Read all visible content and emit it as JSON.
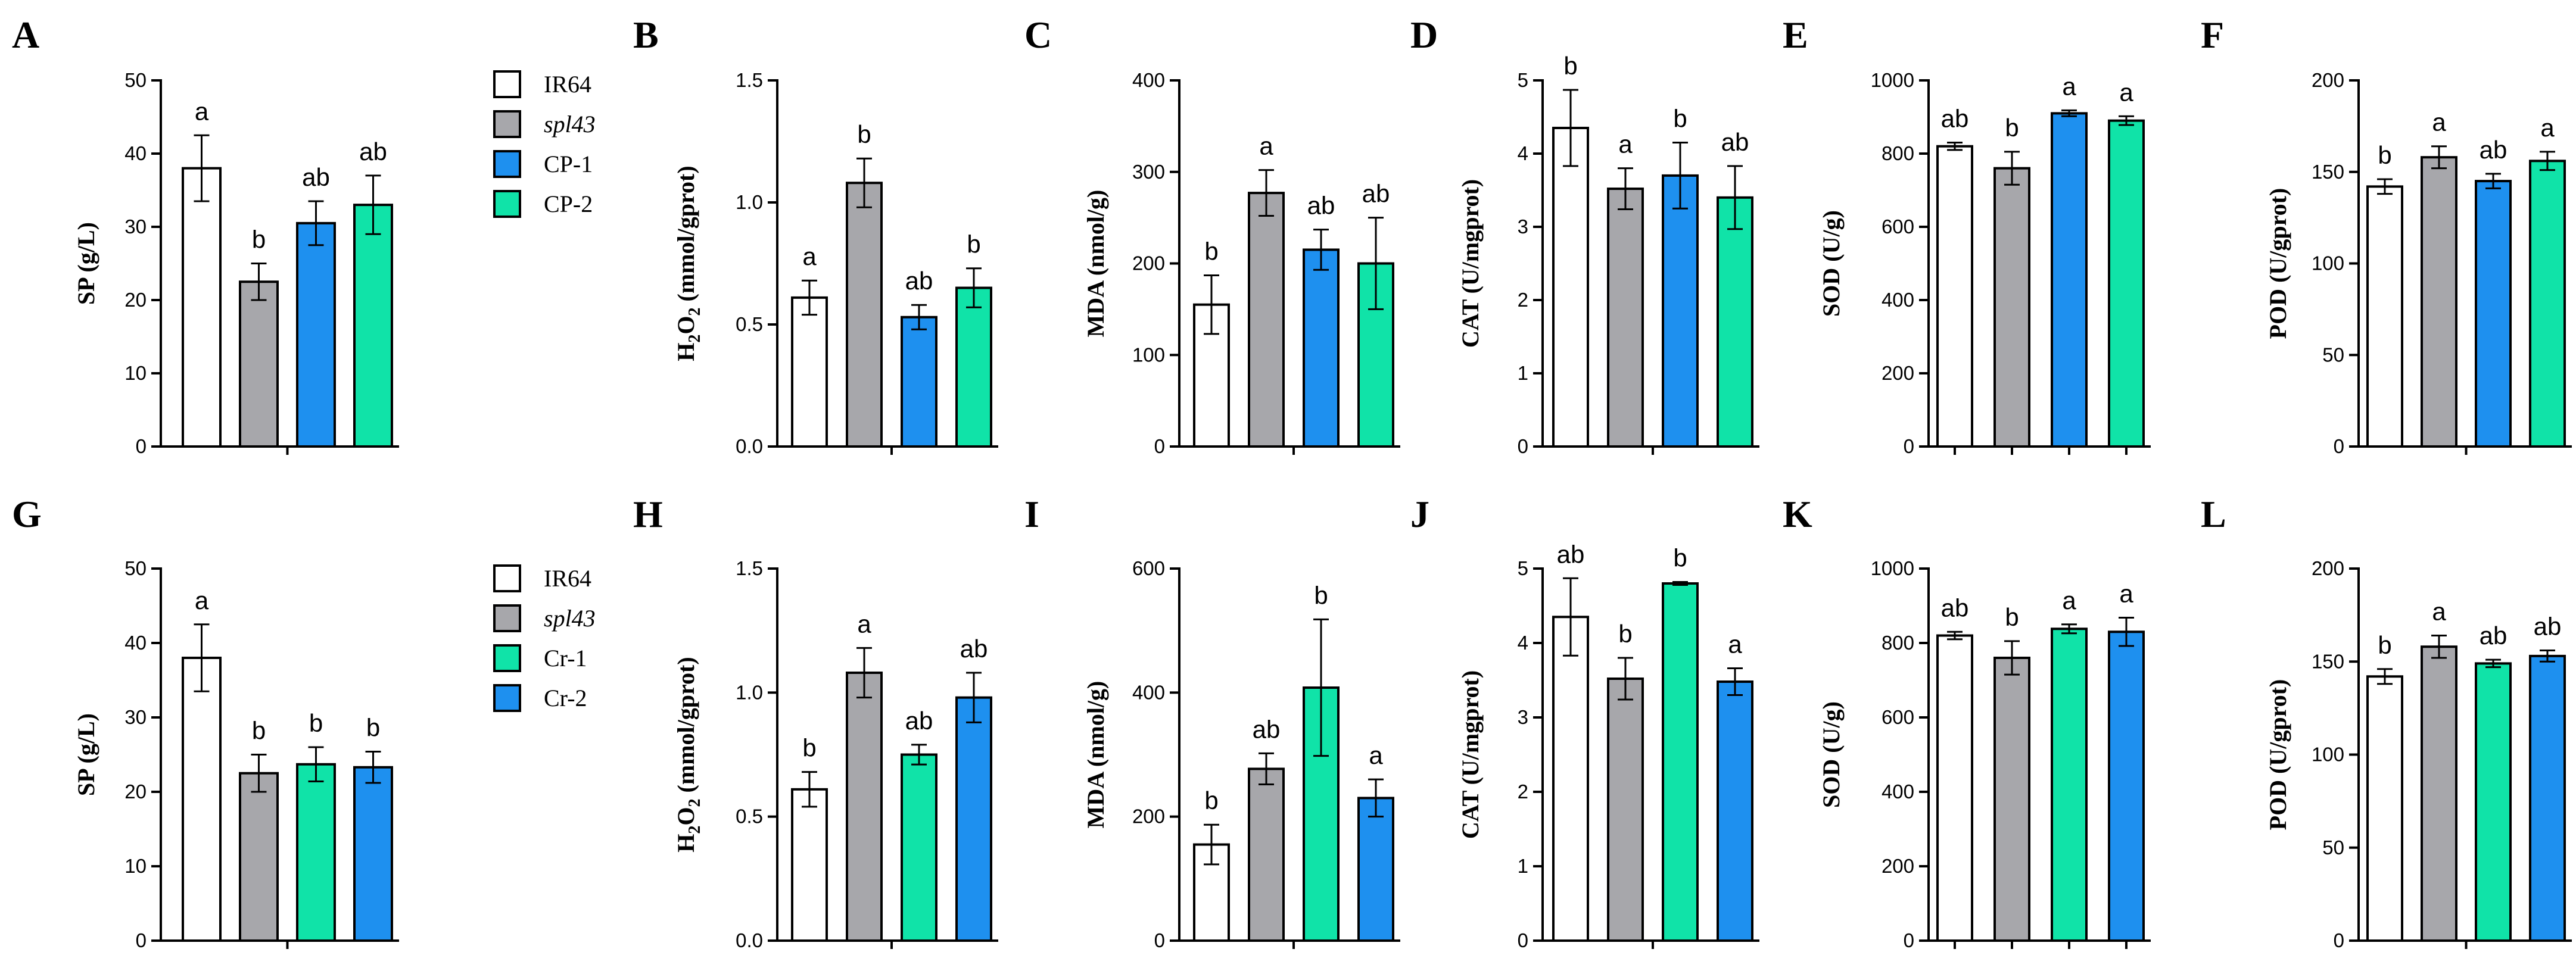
{
  "colors": {
    "IR64": "#ffffff",
    "spl43": "#a7a7ab",
    "blue": "#1e90ef",
    "green": "#10e3a8"
  },
  "legends": [
    {
      "row": 0,
      "items": [
        {
          "label": "IR64",
          "color": "#ffffff",
          "italic": false
        },
        {
          "label": "spl43",
          "color": "#a7a7ab",
          "italic": true
        },
        {
          "label": "CP-1",
          "color": "#1e90ef",
          "italic": false
        },
        {
          "label": "CP-2",
          "color": "#10e3a8",
          "italic": false
        }
      ]
    },
    {
      "row": 1,
      "items": [
        {
          "label": "IR64",
          "color": "#ffffff",
          "italic": false
        },
        {
          "label": "spl43",
          "color": "#a7a7ab",
          "italic": true
        },
        {
          "label": "Cr-1",
          "color": "#10e3a8",
          "italic": false
        },
        {
          "label": "Cr-2",
          "color": "#1e90ef",
          "italic": false
        }
      ]
    }
  ],
  "chart_data": [
    {
      "panel": "A",
      "type": "bar",
      "row": 0,
      "col": 0,
      "ylabel": "SP (g/L)",
      "ylim": [
        0,
        50
      ],
      "yticks": [
        "0",
        "10",
        "20",
        "30",
        "40",
        "50"
      ],
      "yticks_values": [
        0,
        10,
        20,
        30,
        40,
        50
      ],
      "categories": [
        "IR64",
        "spl43",
        "CP-1",
        "CP-2"
      ],
      "values": [
        38,
        22.5,
        30.5,
        33
      ],
      "errors": [
        4.5,
        2.5,
        3,
        4
      ],
      "letters": [
        "a",
        "b",
        "ab",
        "ab"
      ],
      "colors": [
        "#ffffff",
        "#a7a7ab",
        "#1e90ef",
        "#10e3a8"
      ],
      "xtick_mode": "center"
    },
    {
      "panel": "B",
      "type": "bar",
      "row": 0,
      "col": 1,
      "ylabel": "H2O2 (mmol/gprot)",
      "ylim": [
        0,
        1.5
      ],
      "yticks": [
        "0.0",
        "0.5",
        "1.0",
        "1.5"
      ],
      "yticks_values": [
        0,
        0.5,
        1.0,
        1.5
      ],
      "categories": [
        "IR64",
        "spl43",
        "CP-1",
        "CP-2"
      ],
      "values": [
        0.61,
        1.08,
        0.53,
        0.65
      ],
      "errors": [
        0.07,
        0.1,
        0.05,
        0.08
      ],
      "letters": [
        "a",
        "b",
        "ab",
        "b"
      ],
      "colors": [
        "#ffffff",
        "#a7a7ab",
        "#1e90ef",
        "#10e3a8"
      ],
      "xtick_mode": "center"
    },
    {
      "panel": "C",
      "type": "bar",
      "row": 0,
      "col": 2,
      "ylabel": "MDA (nmol/g)",
      "ylim": [
        0,
        400
      ],
      "yticks": [
        "0",
        "100",
        "200",
        "300",
        "400"
      ],
      "yticks_values": [
        0,
        100,
        200,
        300,
        400
      ],
      "categories": [
        "IR64",
        "spl43",
        "CP-1",
        "CP-2"
      ],
      "values": [
        155,
        277,
        215,
        200
      ],
      "errors": [
        32,
        25,
        22,
        50
      ],
      "letters": [
        "b",
        "a",
        "ab",
        "ab"
      ],
      "colors": [
        "#ffffff",
        "#a7a7ab",
        "#1e90ef",
        "#10e3a8"
      ],
      "xtick_mode": "center"
    },
    {
      "panel": "D",
      "type": "bar",
      "row": 0,
      "col": 3,
      "ylabel": "CAT (U/mgprot)",
      "ylim": [
        0,
        5
      ],
      "yticks": [
        "0",
        "1",
        "2",
        "3",
        "4",
        "5"
      ],
      "yticks_values": [
        0,
        1,
        2,
        3,
        4,
        5
      ],
      "categories": [
        "IR64",
        "spl43",
        "CP-1",
        "CP-2"
      ],
      "values": [
        4.35,
        3.52,
        3.7,
        3.4
      ],
      "errors": [
        0.52,
        0.28,
        0.45,
        0.43
      ],
      "letters": [
        "b",
        "a",
        "b",
        "ab"
      ],
      "colors": [
        "#ffffff",
        "#a7a7ab",
        "#1e90ef",
        "#10e3a8"
      ],
      "xtick_mode": "center"
    },
    {
      "panel": "E",
      "type": "bar",
      "row": 0,
      "col": 4,
      "ylabel": "SOD (U/g)",
      "ylim": [
        0,
        1000
      ],
      "yticks": [
        "0",
        "200",
        "400",
        "600",
        "800",
        "1000"
      ],
      "yticks_values": [
        0,
        200,
        400,
        600,
        800,
        1000
      ],
      "categories": [
        "IR64",
        "spl43",
        "CP-1",
        "CP-2"
      ],
      "values": [
        820,
        760,
        910,
        890
      ],
      "errors": [
        10,
        45,
        8,
        12
      ],
      "letters": [
        "ab",
        "b",
        "a",
        "a"
      ],
      "colors": [
        "#ffffff",
        "#a7a7ab",
        "#1e90ef",
        "#10e3a8"
      ],
      "xtick_mode": "each"
    },
    {
      "panel": "F",
      "type": "bar",
      "row": 0,
      "col": 5,
      "ylabel": "POD (U/gprot)",
      "ylim": [
        0,
        200
      ],
      "yticks": [
        "0",
        "50",
        "100",
        "150",
        "200"
      ],
      "yticks_values": [
        0,
        50,
        100,
        150,
        200
      ],
      "categories": [
        "IR64",
        "spl43",
        "CP-1",
        "CP-2"
      ],
      "values": [
        142,
        158,
        145,
        156
      ],
      "errors": [
        4,
        6,
        4,
        5
      ],
      "letters": [
        "b",
        "a",
        "ab",
        "a"
      ],
      "colors": [
        "#ffffff",
        "#a7a7ab",
        "#1e90ef",
        "#10e3a8"
      ],
      "xtick_mode": "center"
    },
    {
      "panel": "G",
      "type": "bar",
      "row": 1,
      "col": 0,
      "ylabel": "SP (g/L)",
      "ylim": [
        0,
        50
      ],
      "yticks": [
        "0",
        "10",
        "20",
        "30",
        "40",
        "50"
      ],
      "yticks_values": [
        0,
        10,
        20,
        30,
        40,
        50
      ],
      "categories": [
        "IR64",
        "spl43",
        "Cr-1",
        "Cr-2"
      ],
      "values": [
        38,
        22.5,
        23.7,
        23.3
      ],
      "errors": [
        4.5,
        2.5,
        2.3,
        2.1
      ],
      "letters": [
        "a",
        "b",
        "b",
        "b"
      ],
      "colors": [
        "#ffffff",
        "#a7a7ab",
        "#10e3a8",
        "#1e90ef"
      ],
      "xtick_mode": "center"
    },
    {
      "panel": "H",
      "type": "bar",
      "row": 1,
      "col": 1,
      "ylabel": "H2O2 (mmol/gprot)",
      "ylim": [
        0,
        1.5
      ],
      "yticks": [
        "0.0",
        "0.5",
        "1.0",
        "1.5"
      ],
      "yticks_values": [
        0,
        0.5,
        1.0,
        1.5
      ],
      "categories": [
        "IR64",
        "spl43",
        "Cr-1",
        "Cr-2"
      ],
      "values": [
        0.61,
        1.08,
        0.75,
        0.98
      ],
      "errors": [
        0.07,
        0.1,
        0.04,
        0.1
      ],
      "letters": [
        "b",
        "a",
        "ab",
        "ab"
      ],
      "colors": [
        "#ffffff",
        "#a7a7ab",
        "#10e3a8",
        "#1e90ef"
      ],
      "xtick_mode": "center"
    },
    {
      "panel": "I",
      "type": "bar",
      "row": 1,
      "col": 2,
      "ylabel": "MDA (nmol/g)",
      "ylim": [
        0,
        600
      ],
      "yticks": [
        "0",
        "200",
        "400",
        "600"
      ],
      "yticks_values": [
        0,
        200,
        400,
        600
      ],
      "categories": [
        "IR64",
        "spl43",
        "Cr-1",
        "Cr-2"
      ],
      "values": [
        155,
        277,
        408,
        230
      ],
      "errors": [
        32,
        25,
        110,
        30
      ],
      "letters": [
        "b",
        "ab",
        "b",
        "a"
      ],
      "colors": [
        "#ffffff",
        "#a7a7ab",
        "#10e3a8",
        "#1e90ef"
      ],
      "xtick_mode": "center"
    },
    {
      "panel": "J",
      "type": "bar",
      "row": 1,
      "col": 3,
      "ylabel": "CAT (U/mgprot)",
      "ylim": [
        0,
        5
      ],
      "yticks": [
        "0",
        "1",
        "2",
        "3",
        "4",
        "5"
      ],
      "yticks_values": [
        0,
        1,
        2,
        3,
        4,
        5
      ],
      "categories": [
        "IR64",
        "spl43",
        "Cr-1",
        "Cr-2"
      ],
      "values": [
        4.35,
        3.52,
        4.8,
        3.48
      ],
      "errors": [
        0.52,
        0.28,
        0.02,
        0.18
      ],
      "letters": [
        "ab",
        "b",
        "b",
        "a"
      ],
      "colors": [
        "#ffffff",
        "#a7a7ab",
        "#10e3a8",
        "#1e90ef"
      ],
      "xtick_mode": "center"
    },
    {
      "panel": "K",
      "type": "bar",
      "row": 1,
      "col": 4,
      "ylabel": "SOD (U/g)",
      "ylim": [
        0,
        1000
      ],
      "yticks": [
        "0",
        "200",
        "400",
        "600",
        "800",
        "1000"
      ],
      "yticks_values": [
        0,
        200,
        400,
        600,
        800,
        1000
      ],
      "categories": [
        "IR64",
        "spl43",
        "Cr-1",
        "Cr-2"
      ],
      "values": [
        820,
        760,
        838,
        830
      ],
      "errors": [
        10,
        45,
        12,
        38
      ],
      "letters": [
        "ab",
        "b",
        "a",
        "a"
      ],
      "colors": [
        "#ffffff",
        "#a7a7ab",
        "#10e3a8",
        "#1e90ef"
      ],
      "xtick_mode": "each"
    },
    {
      "panel": "L",
      "type": "bar",
      "row": 1,
      "col": 5,
      "ylabel": "POD (U/gprot)",
      "ylim": [
        0,
        200
      ],
      "yticks": [
        "0",
        "50",
        "100",
        "150",
        "200"
      ],
      "yticks_values": [
        0,
        50,
        100,
        150,
        200
      ],
      "categories": [
        "IR64",
        "spl43",
        "Cr-1",
        "Cr-2"
      ],
      "values": [
        142,
        158,
        149,
        153
      ],
      "errors": [
        4,
        6,
        2,
        3
      ],
      "letters": [
        "b",
        "a",
        "ab",
        "ab"
      ],
      "colors": [
        "#ffffff",
        "#a7a7ab",
        "#10e3a8",
        "#1e90ef"
      ],
      "xtick_mode": "center"
    }
  ]
}
